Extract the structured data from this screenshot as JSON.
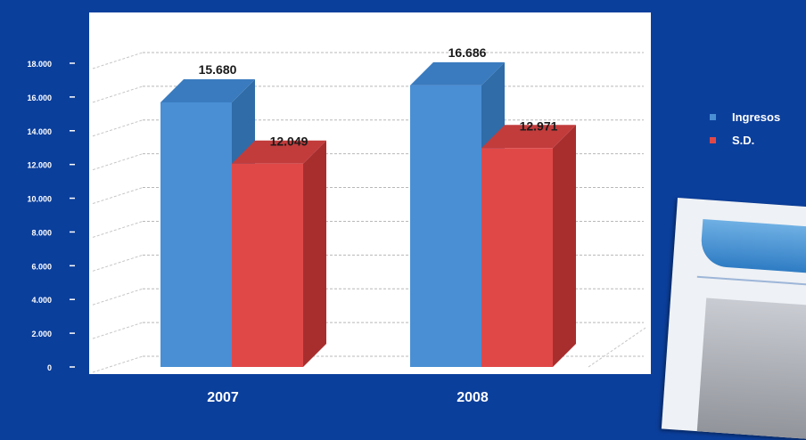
{
  "chart_data": {
    "type": "bar",
    "categories": [
      "2007",
      "2008"
    ],
    "series": [
      {
        "name": "Ingresos",
        "values": [
          15680,
          16686
        ],
        "labels": [
          "15.680",
          "16.686"
        ],
        "color": "#4a8fd4"
      },
      {
        "name": "S.D.",
        "values": [
          12049,
          12971
        ],
        "labels": [
          "12.049",
          "12.971"
        ],
        "color": "#e04848"
      }
    ],
    "ylim": [
      0,
      18000
    ],
    "yticks": [
      0,
      2000,
      4000,
      6000,
      8000,
      10000,
      12000,
      14000,
      16000,
      18000
    ],
    "ytick_labels": [
      "0",
      "2.000",
      "4.000",
      "6.000",
      "8.000",
      "10.000",
      "12.000",
      "14.000",
      "16.000",
      "18.000"
    ],
    "grid": true,
    "legend_position": "right",
    "title": "",
    "xlabel": "",
    "ylabel": ""
  },
  "colors": {
    "background": "#0b3f9c",
    "plot_area": "#ffffff",
    "ingresos_side": "#2f6ca8",
    "ingresos_top": "#3a7bbf",
    "sd_side": "#a82e2e",
    "sd_top": "#c23c3c"
  }
}
